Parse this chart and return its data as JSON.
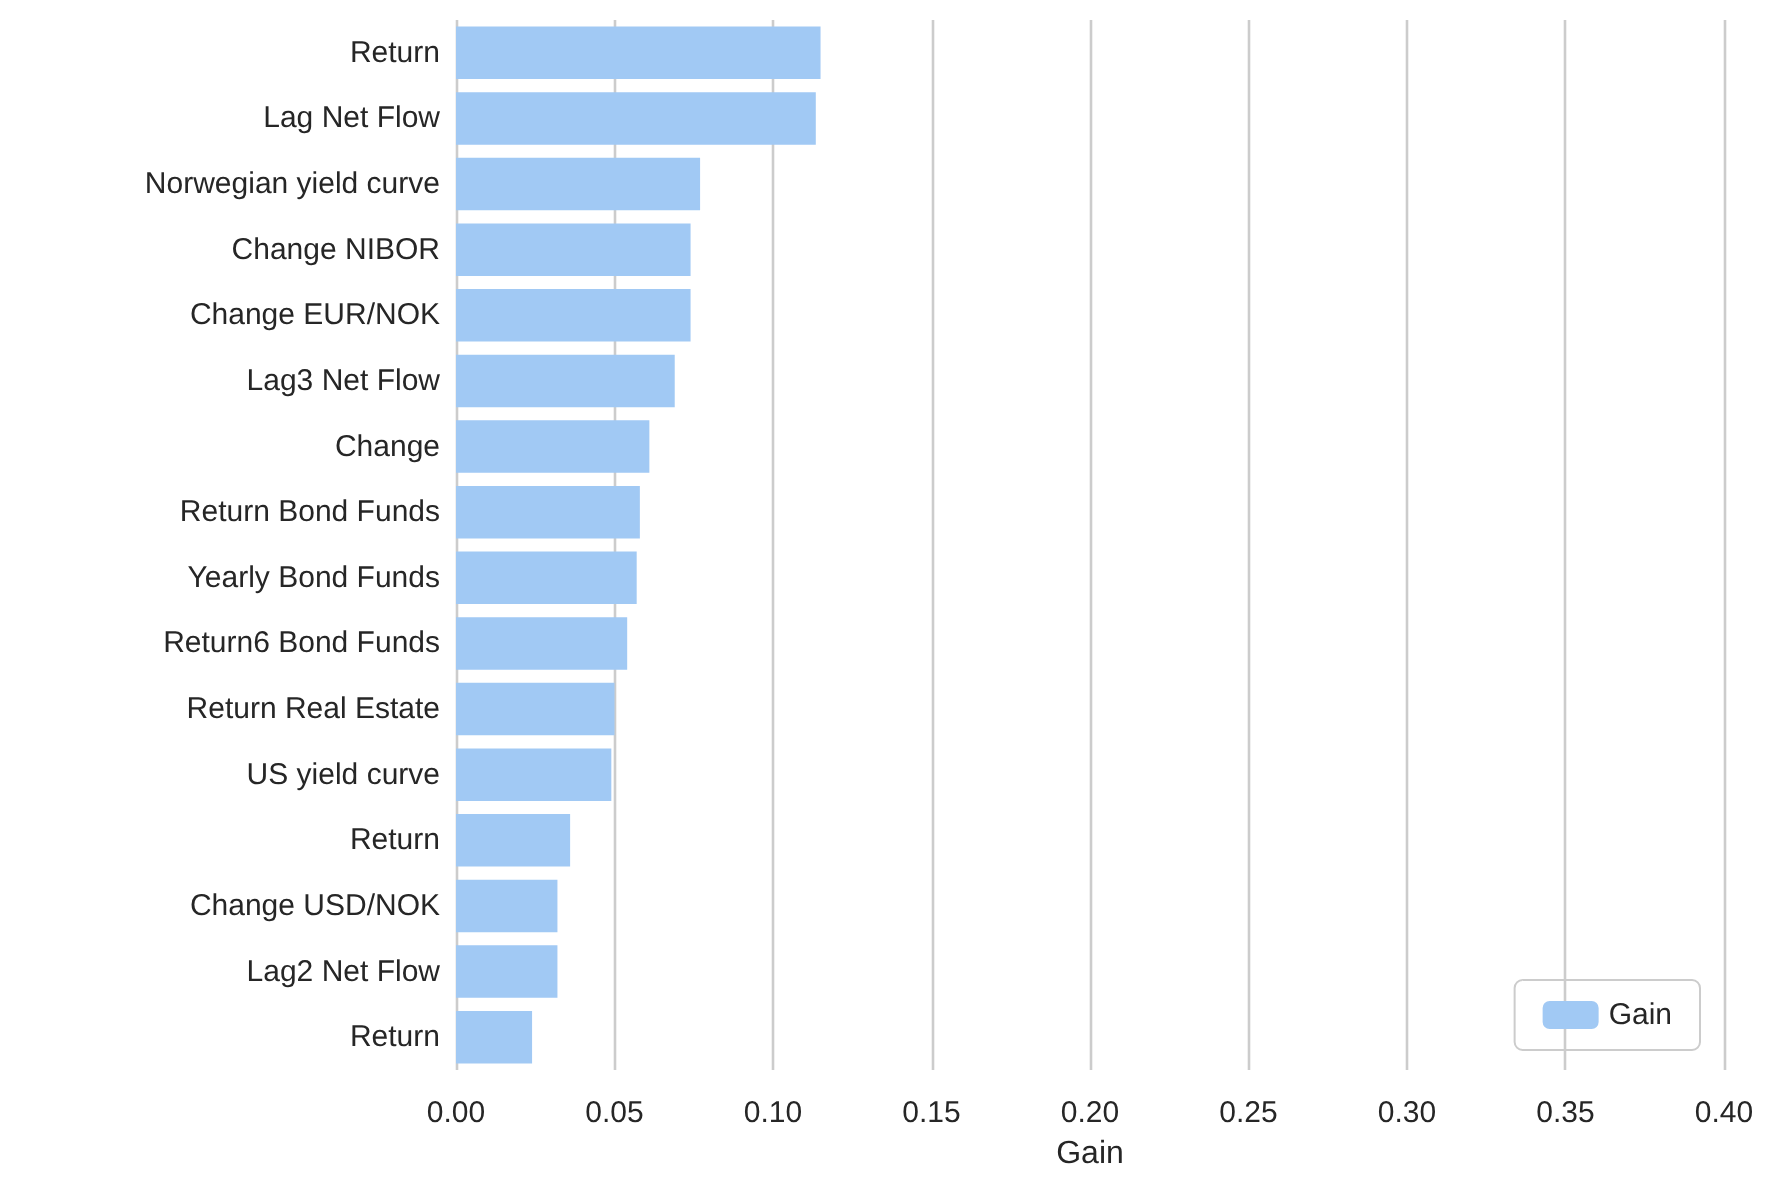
{
  "chart_data": {
    "type": "bar",
    "orientation": "horizontal",
    "xlabel": "Gain",
    "categories": [
      "Return",
      "Lag Net Flow",
      "Norwegian yield curve",
      "Change NIBOR",
      "Change EUR/NOK",
      "Lag3 Net Flow",
      "Change",
      "Return Bond Funds",
      "Yearly Bond Funds",
      "Return6 Bond Funds",
      "Return Real Estate",
      "US yield curve",
      "Return",
      "Change USD/NOK",
      "Lag2 Net Flow",
      "Return"
    ],
    "series": [
      {
        "name": "Gain",
        "color": "#a1c9f4",
        "values": [
          0.115,
          0.1135,
          0.077,
          0.074,
          0.074,
          0.069,
          0.061,
          0.058,
          0.057,
          0.054,
          0.05,
          0.049,
          0.036,
          0.032,
          0.032,
          0.024
        ]
      }
    ],
    "xlim": [
      0,
      0.4
    ],
    "xticks": [
      {
        "value": 0,
        "label": "0.00"
      },
      {
        "value": 0.05,
        "label": "0.05"
      },
      {
        "value": 0.1,
        "label": "0.10"
      },
      {
        "value": 0.15,
        "label": "0.15"
      },
      {
        "value": 0.2,
        "label": "0.20"
      },
      {
        "value": 0.25,
        "label": "0.25"
      },
      {
        "value": 0.3,
        "label": "0.30"
      },
      {
        "value": 0.35,
        "label": "0.35"
      },
      {
        "value": 0.4,
        "label": "0.40"
      }
    ],
    "grid": "x",
    "legend": "bottom right"
  }
}
